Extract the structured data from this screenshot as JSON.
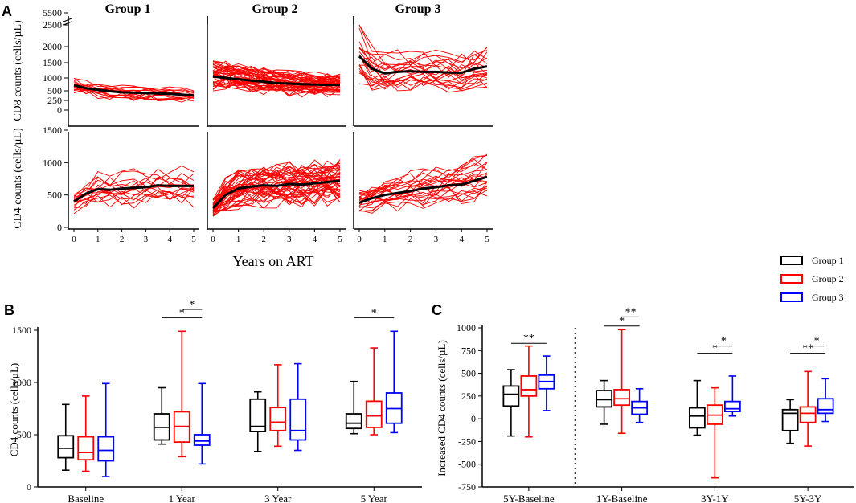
{
  "panel_labels": {
    "a": "A",
    "b": "B",
    "c": "C"
  },
  "legend": [
    {
      "label": "Group 1",
      "color": "#000000"
    },
    {
      "label": "Group 2",
      "color": "#ff0000"
    },
    {
      "label": "Group 3",
      "color": "#0000ff"
    }
  ],
  "chart_data": [
    {
      "panel": "A",
      "type": "line",
      "xlabel": "Years on ART",
      "x_ticks": [
        "0",
        "1",
        "2",
        "3",
        "4",
        "5"
      ],
      "groups": [
        {
          "title": "Group 1",
          "color": "#000000"
        },
        {
          "title": "Group 2",
          "color": "#ff0000"
        },
        {
          "title": "Group 3",
          "color": "#0000ff"
        }
      ],
      "rows": [
        {
          "ylabel": "CD8 counts (cells/µL)",
          "y_ticks": [
            "0",
            "250",
            "500",
            "1000",
            "1500",
            "2000",
            "2500",
            "5500"
          ],
          "y_tick_values": [
            0,
            250,
            500,
            1000,
            1500,
            2000,
            2500,
            5500
          ],
          "mean_series": [
            [
              [
                0,
                720
              ],
              [
                0.5,
                600
              ],
              [
                1,
                540
              ],
              [
                1.5,
                490
              ],
              [
                2,
                460
              ],
              [
                2.5,
                450
              ],
              [
                3,
                440
              ],
              [
                3.5,
                430
              ],
              [
                4,
                420
              ],
              [
                4.5,
                400
              ],
              [
                5,
                380
              ]
            ],
            [
              [
                0,
                1050
              ],
              [
                0.5,
                1000
              ],
              [
                1,
                950
              ],
              [
                1.5,
                900
              ],
              [
                2,
                850
              ],
              [
                2.5,
                800
              ],
              [
                3,
                780
              ],
              [
                3.5,
                760
              ],
              [
                4,
                740
              ],
              [
                4.5,
                730
              ],
              [
                5,
                730
              ]
            ],
            [
              [
                0,
                1700
              ],
              [
                0.5,
                1300
              ],
              [
                1,
                1150
              ],
              [
                1.5,
                1200
              ],
              [
                2,
                1220
              ],
              [
                2.5,
                1200
              ],
              [
                3,
                1200
              ],
              [
                3.5,
                1180
              ],
              [
                4,
                1170
              ],
              [
                4.5,
                1300
              ],
              [
                5,
                1380
              ]
            ]
          ]
        },
        {
          "ylabel": "CD4 counts (cells/µL)",
          "y_ticks": [
            "0",
            "500",
            "1000",
            "1500"
          ],
          "y_tick_values": [
            0,
            500,
            1000,
            1500
          ],
          "mean_series": [
            [
              [
                0,
                400
              ],
              [
                0.5,
                520
              ],
              [
                1,
                590
              ],
              [
                1.5,
                580
              ],
              [
                2,
                600
              ],
              [
                2.5,
                610
              ],
              [
                3,
                620
              ],
              [
                3.5,
                650
              ],
              [
                4,
                640
              ],
              [
                4.5,
                640
              ],
              [
                5,
                640
              ]
            ],
            [
              [
                0,
                300
              ],
              [
                0.5,
                500
              ],
              [
                1,
                600
              ],
              [
                1.5,
                630
              ],
              [
                2,
                650
              ],
              [
                2.5,
                640
              ],
              [
                3,
                670
              ],
              [
                3.5,
                660
              ],
              [
                4,
                680
              ],
              [
                4.5,
                700
              ],
              [
                5,
                720
              ]
            ],
            [
              [
                0,
                380
              ],
              [
                0.5,
                450
              ],
              [
                1,
                500
              ],
              [
                1.5,
                530
              ],
              [
                2,
                560
              ],
              [
                2.5,
                600
              ],
              [
                3,
                620
              ],
              [
                3.5,
                650
              ],
              [
                4,
                660
              ],
              [
                4.5,
                720
              ],
              [
                5,
                780
              ]
            ]
          ]
        }
      ]
    },
    {
      "panel": "B",
      "type": "box",
      "ylabel": "CD4 counts (cells/µL)",
      "ylim": [
        0,
        1500
      ],
      "y_ticks": [
        "0",
        "500",
        "1000",
        "1500"
      ],
      "categories": [
        "Baseline",
        "1 Year",
        "3 Year",
        "5 Year"
      ],
      "series": [
        {
          "name": "Group 1",
          "color": "#000000",
          "boxes": [
            {
              "min": 160,
              "q1": 280,
              "median": 370,
              "q3": 490,
              "max": 790
            },
            {
              "min": 410,
              "q1": 450,
              "median": 570,
              "q3": 700,
              "max": 950
            },
            {
              "min": 340,
              "q1": 530,
              "median": 580,
              "q3": 840,
              "max": 910
            },
            {
              "min": 510,
              "q1": 560,
              "median": 610,
              "q3": 700,
              "max": 1010
            }
          ]
        },
        {
          "name": "Group 2",
          "color": "#ff0000",
          "boxes": [
            {
              "min": 150,
              "q1": 260,
              "median": 330,
              "q3": 480,
              "max": 870
            },
            {
              "min": 290,
              "q1": 430,
              "median": 580,
              "q3": 720,
              "max": 1490
            },
            {
              "min": 390,
              "q1": 540,
              "median": 620,
              "q3": 760,
              "max": 1170
            },
            {
              "min": 500,
              "q1": 570,
              "median": 680,
              "q3": 820,
              "max": 1330
            }
          ]
        },
        {
          "name": "Group 3",
          "color": "#0000ff",
          "boxes": [
            {
              "min": 100,
              "q1": 250,
              "median": 350,
              "q3": 480,
              "max": 990
            },
            {
              "min": 220,
              "q1": 400,
              "median": 440,
              "q3": 500,
              "max": 990
            },
            {
              "min": 350,
              "q1": 450,
              "median": 540,
              "q3": 840,
              "max": 1180
            },
            {
              "min": 520,
              "q1": 610,
              "median": 750,
              "q3": 900,
              "max": 1490
            }
          ]
        }
      ],
      "significance": [
        {
          "category": 1,
          "from": "Group 1",
          "to": "Group 3",
          "y": 1620,
          "label": "*"
        },
        {
          "category": 1,
          "from": "Group 2",
          "to": "Group 3",
          "y": 1700,
          "label": "*"
        },
        {
          "category": 3,
          "from": "Group 1",
          "to": "Group 3",
          "y": 1620,
          "label": "*"
        }
      ]
    },
    {
      "panel": "C",
      "type": "box",
      "ylabel": "Increased CD4 counts (cells/µL)",
      "ylim": [
        -750,
        1000
      ],
      "y_ticks": [
        "-750",
        "-500",
        "-250",
        "0",
        "250",
        "500",
        "750",
        "1000"
      ],
      "categories": [
        "5Y-Baseline",
        "1Y-Baseline",
        "3Y-1Y",
        "5Y-3Y"
      ],
      "divider_after": 0,
      "series": [
        {
          "name": "Group 1",
          "color": "#000000",
          "boxes": [
            {
              "min": -190,
              "q1": 140,
              "median": 270,
              "q3": 360,
              "max": 540
            },
            {
              "min": -60,
              "q1": 130,
              "median": 210,
              "q3": 310,
              "max": 420
            },
            {
              "min": -180,
              "q1": -100,
              "median": 30,
              "q3": 120,
              "max": 420
            },
            {
              "min": -270,
              "q1": -130,
              "median": 60,
              "q3": 100,
              "max": 210
            }
          ]
        },
        {
          "name": "Group 2",
          "color": "#ff0000",
          "boxes": [
            {
              "min": -200,
              "q1": 250,
              "median": 320,
              "q3": 470,
              "max": 800
            },
            {
              "min": -160,
              "q1": 150,
              "median": 220,
              "q3": 320,
              "max": 980
            },
            {
              "min": -650,
              "q1": -60,
              "median": 40,
              "q3": 150,
              "max": 340
            },
            {
              "min": -300,
              "q1": -40,
              "median": 60,
              "q3": 130,
              "max": 520
            }
          ]
        },
        {
          "name": "Group 3",
          "color": "#0000ff",
          "boxes": [
            {
              "min": 90,
              "q1": 330,
              "median": 410,
              "q3": 480,
              "max": 690
            },
            {
              "min": -40,
              "q1": 50,
              "median": 120,
              "q3": 190,
              "max": 330
            },
            {
              "min": 30,
              "q1": 80,
              "median": 110,
              "q3": 190,
              "max": 470
            },
            {
              "min": -30,
              "q1": 60,
              "median": 100,
              "q3": 220,
              "max": 440
            }
          ]
        }
      ],
      "significance": [
        {
          "category": 0,
          "from": "Group 1",
          "to": "Group 3",
          "y": 830,
          "label": "**"
        },
        {
          "category": 1,
          "from": "Group 1",
          "to": "Group 3",
          "y": 1020,
          "label": "*"
        },
        {
          "category": 1,
          "from": "Group 2",
          "to": "Group 3",
          "y": 1120,
          "label": "**"
        },
        {
          "category": 2,
          "from": "Group 1",
          "to": "Group 3",
          "y": 720,
          "label": "*"
        },
        {
          "category": 2,
          "from": "Group 2",
          "to": "Group 3",
          "y": 800,
          "label": "*"
        },
        {
          "category": 3,
          "from": "Group 1",
          "to": "Group 3",
          "y": 720,
          "label": "**"
        },
        {
          "category": 3,
          "from": "Group 2",
          "to": "Group 3",
          "y": 800,
          "label": "*"
        }
      ]
    }
  ]
}
